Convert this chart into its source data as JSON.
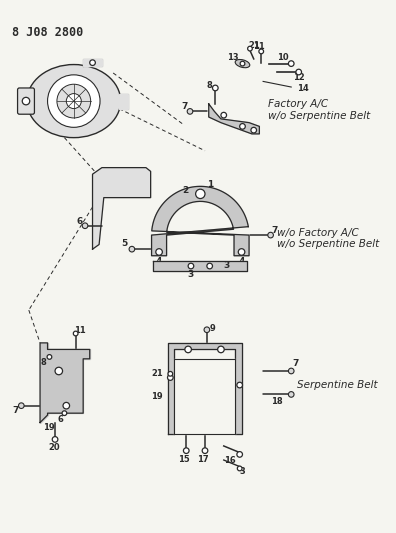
{
  "title": "8 J08 2800",
  "bg_color": "#f5f5f0",
  "line_color": "#2a2a2a",
  "gray_fill": "#c8c8c8",
  "light_gray": "#e0e0e0",
  "labels": {
    "factory_ac": "Factory A/C\nw/o Serpentine Belt",
    "wo_factory_ac": "w/o Factory A/C\nw/o Serpentine Belt",
    "serpentine": "Serpentine Belt"
  },
  "figsize": [
    3.96,
    5.33
  ],
  "dpi": 100
}
